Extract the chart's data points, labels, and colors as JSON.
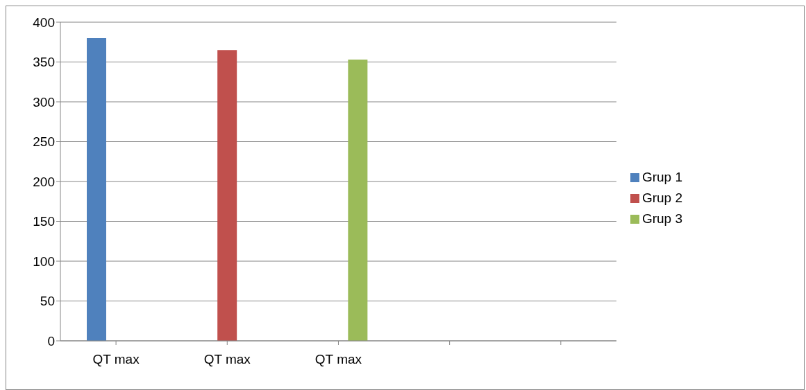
{
  "chart_data": {
    "type": "bar",
    "categories": [
      "QT max",
      "QT max",
      "QT max",
      null,
      null
    ],
    "series": [
      {
        "name": "Grup 1",
        "color": "#4f81bd",
        "values": [
          380,
          null,
          null,
          null,
          null
        ]
      },
      {
        "name": "Grup 2",
        "color": "#c0504d",
        "values": [
          null,
          365,
          null,
          null,
          null
        ]
      },
      {
        "name": "Grup 3",
        "color": "#9bbb59",
        "values": [
          null,
          null,
          353,
          null,
          null
        ]
      }
    ],
    "ylim": [
      0,
      400
    ],
    "yticks": [
      0,
      50,
      100,
      150,
      200,
      250,
      300,
      350,
      400
    ],
    "grid": "y",
    "legend": "right"
  }
}
